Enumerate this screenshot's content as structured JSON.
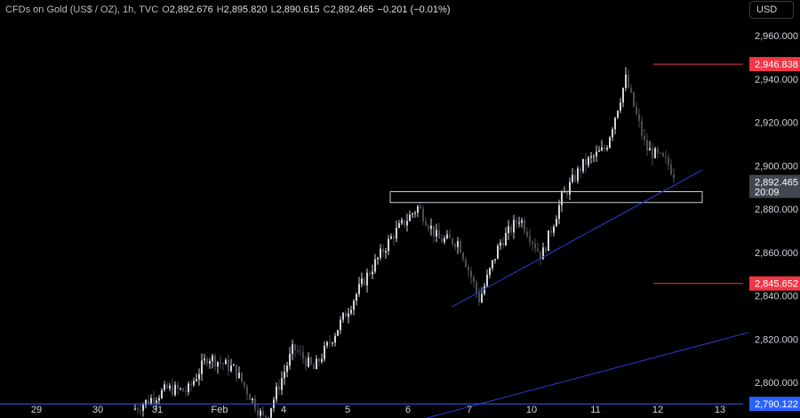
{
  "header": {
    "symbol": "CFDs on Gold (US$ / OZ), 1h, TVC",
    "open_label": "O",
    "open": "2,892.676",
    "high_label": "H",
    "high": "2,895.820",
    "low_label": "L",
    "low": "2,890.615",
    "close_label": "C",
    "close": "2,892.465",
    "change": "−0.201 (−0.01%)"
  },
  "currency_button": "USD",
  "chart_data": {
    "type": "candlestick",
    "symbol": "CFDs on Gold (US$ / OZ)",
    "interval": "1h",
    "y_ticks": [
      2800,
      2820,
      2840,
      2860,
      2880,
      2900,
      2920,
      2940,
      2960
    ],
    "y_tick_labels": [
      "2,800.000",
      "2,820.000",
      "2,840.000",
      "2,860.000",
      "2,880.000",
      "2,900.000",
      "2,920.000",
      "2,940.000",
      "2,960.000"
    ],
    "ylim": [
      2788,
      2968
    ],
    "x_ticks": [
      "29",
      "30",
      "31",
      "Feb",
      "4",
      "5",
      "6",
      "7",
      "10",
      "11",
      "12",
      "13"
    ],
    "price_tags": [
      {
        "value": 2946.838,
        "label": "2,946.838",
        "color": "#f23645",
        "type": "level"
      },
      {
        "value": 2845.652,
        "label": "2,845.652",
        "color": "#f23645",
        "type": "level"
      },
      {
        "value": 2790.122,
        "label": "2,790.122",
        "color": "#2962ff",
        "type": "horizontal-line"
      },
      {
        "value": 2892.465,
        "label": "2,892.465",
        "countdown": "20:09",
        "color": "#434651",
        "type": "last-price"
      }
    ],
    "support_zone": {
      "from_day": "5",
      "to_day": "13",
      "low": 2883,
      "high": 2888
    },
    "trendlines": [
      {
        "from": {
          "day": "7",
          "price": 2835
        },
        "to": {
          "day": "13",
          "price": 2898
        }
      },
      {
        "from": {
          "day": "6",
          "price": 2779
        },
        "to": {
          "day": "13",
          "price": 2823
        }
      }
    ],
    "price_path": [
      {
        "day": "30",
        "price": 2786
      },
      {
        "day": "31",
        "price": 2797
      },
      {
        "day": "31",
        "price": 2796
      },
      {
        "day": "31",
        "price": 2812
      },
      {
        "day": "Feb",
        "price": 2806
      },
      {
        "day": "Feb",
        "price": 2782
      },
      {
        "day": "4",
        "price": 2816
      },
      {
        "day": "4",
        "price": 2806
      },
      {
        "day": "4",
        "price": 2822
      },
      {
        "day": "5",
        "price": 2846
      },
      {
        "day": "5",
        "price": 2868
      },
      {
        "day": "6",
        "price": 2881
      },
      {
        "day": "6",
        "price": 2866
      },
      {
        "day": "6",
        "price": 2865
      },
      {
        "day": "7",
        "price": 2838
      },
      {
        "day": "7",
        "price": 2864
      },
      {
        "day": "7",
        "price": 2876
      },
      {
        "day": "10",
        "price": 2858
      },
      {
        "day": "10",
        "price": 2885
      },
      {
        "day": "10",
        "price": 2900
      },
      {
        "day": "11",
        "price": 2908
      },
      {
        "day": "11",
        "price": 2940
      },
      {
        "day": "11",
        "price": 2908
      },
      {
        "day": "12",
        "price": 2901
      },
      {
        "day": "12",
        "price": 2885
      },
      {
        "day": "12",
        "price": 2892.465
      }
    ],
    "colors": {
      "up": "#d1d4dc",
      "down": "#4a4d55",
      "background": "#000000",
      "trendline": "#2c3bd6"
    }
  }
}
